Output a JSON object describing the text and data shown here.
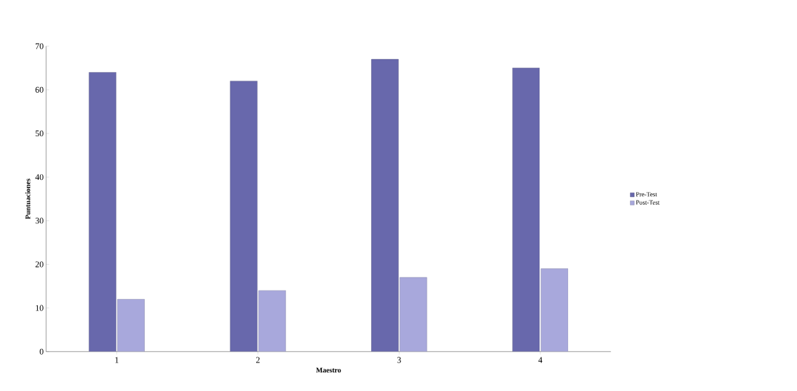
{
  "chart_data": {
    "type": "bar",
    "xlabel": "Maestro",
    "ylabel": "Puntuaciones",
    "categories": [
      "1",
      "2",
      "3",
      "4"
    ],
    "series": [
      {
        "name": "Pre-Test",
        "color": "#6868ac",
        "values": [
          64,
          62,
          67,
          65
        ]
      },
      {
        "name": "Post-Test",
        "color": "#a8a8dc",
        "values": [
          12,
          14,
          17,
          19
        ]
      }
    ],
    "ylim": [
      0,
      70
    ],
    "yticks": [
      0,
      10,
      20,
      30,
      40,
      50,
      60,
      70
    ],
    "legend": "right"
  }
}
